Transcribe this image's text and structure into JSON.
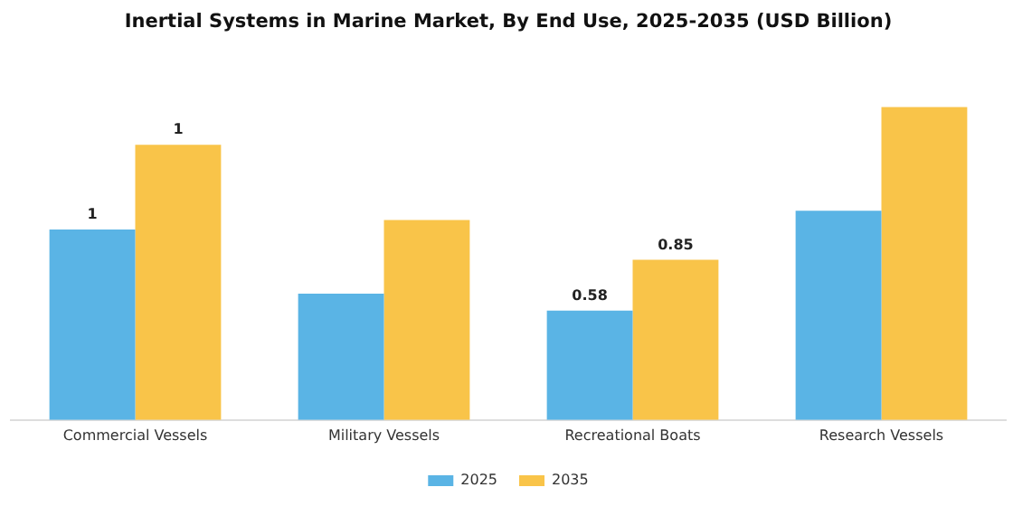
{
  "chart_data": {
    "type": "bar",
    "title": "Inertial Systems in Marine Market, By End Use, 2025-2035 (USD Billion)",
    "categories": [
      "Commercial Vessels",
      "Military Vessels",
      "Recreational Boats",
      "Research Vessels"
    ],
    "series": [
      {
        "name": "2025",
        "color": "#5ab4e5",
        "values": [
          1.01,
          0.67,
          0.58,
          1.11
        ],
        "value_labels": [
          "1",
          null,
          "0.58",
          null
        ]
      },
      {
        "name": "2035",
        "color": "#f9c449",
        "values": [
          1.46,
          1.06,
          0.85,
          1.66
        ],
        "value_labels": [
          "1",
          null,
          "0.85",
          null
        ]
      }
    ],
    "tick_labels": "x",
    "grid": false,
    "legend": "bottom"
  }
}
